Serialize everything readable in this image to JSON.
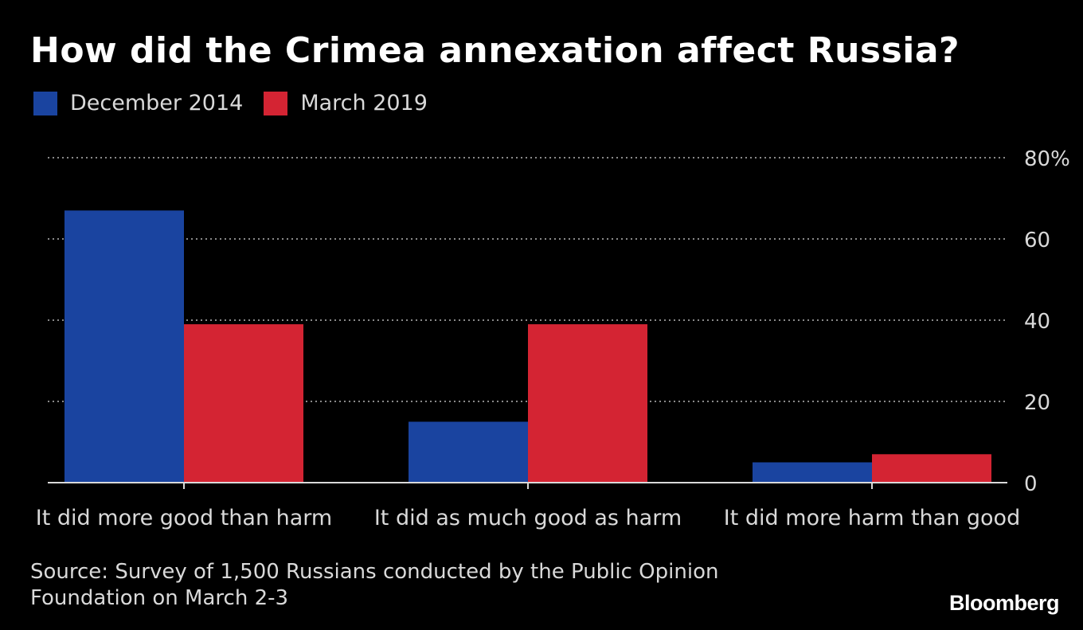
{
  "chart_data": {
    "type": "bar",
    "title": "How did the Crimea annexation affect Russia?",
    "categories": [
      "It did more good than harm",
      "It did as much good as harm",
      "It did more harm than good"
    ],
    "series": [
      {
        "name": "December 2014",
        "color": "#1a44a0",
        "values": [
          67,
          15,
          5
        ]
      },
      {
        "name": "March 2019",
        "color": "#d42433",
        "values": [
          39,
          39,
          7
        ]
      }
    ],
    "ylim": [
      0,
      80
    ],
    "yticks": [
      {
        "value": 0,
        "label": "0"
      },
      {
        "value": 20,
        "label": "20"
      },
      {
        "value": 40,
        "label": "40"
      },
      {
        "value": 60,
        "label": "60"
      },
      {
        "value": 80,
        "label": "80%"
      }
    ],
    "grid": true,
    "y_axis_side": "right",
    "legend_position": "top-left"
  },
  "source": {
    "line1": "Source: Survey of 1,500 Russians conducted by the Public Opinion",
    "line2": "Foundation on March 2-3"
  },
  "logo": "Bloomberg"
}
